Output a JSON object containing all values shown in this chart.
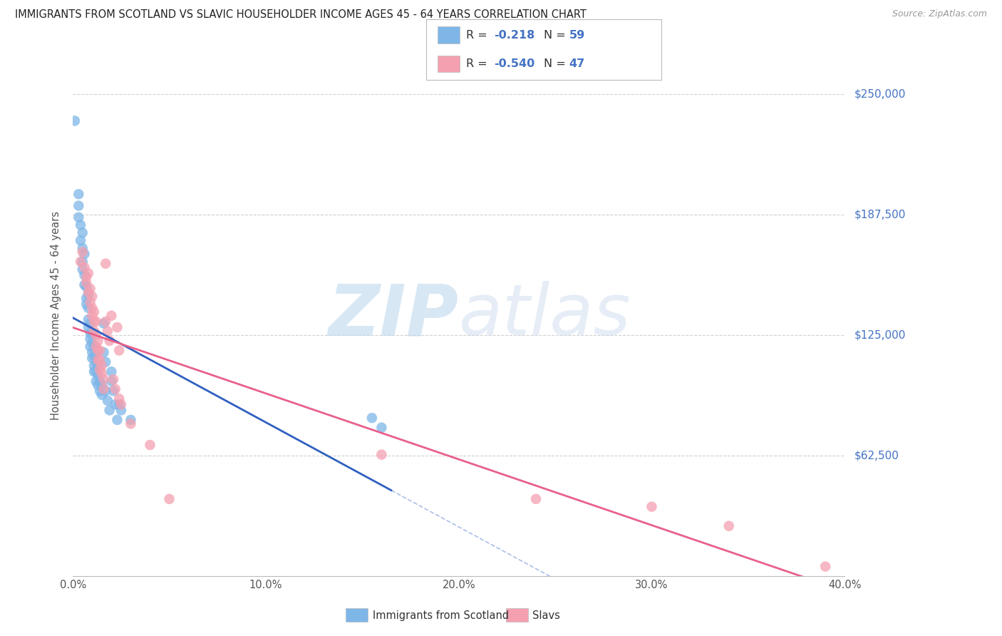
{
  "title": "IMMIGRANTS FROM SCOTLAND VS SLAVIC HOUSEHOLDER INCOME AGES 45 - 64 YEARS CORRELATION CHART",
  "source": "Source: ZipAtlas.com",
  "xlabel_ticks": [
    "0.0%",
    "10.0%",
    "20.0%",
    "30.0%",
    "40.0%"
  ],
  "xtick_vals": [
    0.0,
    0.1,
    0.2,
    0.3,
    0.4
  ],
  "ylabel_label": "Householder Income Ages 45 - 64 years",
  "ylabel_ticks": [
    "$62,500",
    "$125,000",
    "$187,500",
    "$250,000"
  ],
  "ylabel_values": [
    62500,
    125000,
    187500,
    250000
  ],
  "xlim": [
    0.0,
    0.4
  ],
  "ylim": [
    0,
    270000
  ],
  "legend_r_scotland": "-0.218",
  "legend_n_scotland": "59",
  "legend_r_slavs": "-0.540",
  "legend_n_slavs": "47",
  "scotland_color": "#7EB6E8",
  "slavs_color": "#F4A0B0",
  "scotland_line_color": "#3060C0",
  "slavs_line_color": "#E8608A",
  "watermark_zip": "ZIP",
  "watermark_atlas": "atlas",
  "background_color": "#FFFFFF",
  "scotland_points": [
    [
      0.001,
      236000
    ],
    [
      0.003,
      198000
    ],
    [
      0.003,
      192000
    ],
    [
      0.003,
      186000
    ],
    [
      0.004,
      182000
    ],
    [
      0.004,
      174000
    ],
    [
      0.005,
      178000
    ],
    [
      0.005,
      170000
    ],
    [
      0.005,
      163000
    ],
    [
      0.005,
      159000
    ],
    [
      0.006,
      167000
    ],
    [
      0.006,
      156000
    ],
    [
      0.006,
      151000
    ],
    [
      0.007,
      150000
    ],
    [
      0.007,
      144000
    ],
    [
      0.007,
      141000
    ],
    [
      0.008,
      146000
    ],
    [
      0.008,
      139000
    ],
    [
      0.008,
      133000
    ],
    [
      0.008,
      129000
    ],
    [
      0.009,
      131000
    ],
    [
      0.009,
      126000
    ],
    [
      0.009,
      123000
    ],
    [
      0.009,
      119000
    ],
    [
      0.01,
      126000
    ],
    [
      0.01,
      121000
    ],
    [
      0.01,
      116000
    ],
    [
      0.01,
      113000
    ],
    [
      0.011,
      119000
    ],
    [
      0.011,
      114000
    ],
    [
      0.011,
      109000
    ],
    [
      0.011,
      106000
    ],
    [
      0.012,
      116000
    ],
    [
      0.012,
      111000
    ],
    [
      0.012,
      106000
    ],
    [
      0.012,
      101000
    ],
    [
      0.013,
      109000
    ],
    [
      0.013,
      104000
    ],
    [
      0.013,
      99000
    ],
    [
      0.014,
      101000
    ],
    [
      0.014,
      96000
    ],
    [
      0.015,
      99000
    ],
    [
      0.015,
      94000
    ],
    [
      0.016,
      131000
    ],
    [
      0.016,
      116000
    ],
    [
      0.017,
      111000
    ],
    [
      0.017,
      96000
    ],
    [
      0.018,
      91000
    ],
    [
      0.019,
      86000
    ],
    [
      0.02,
      106000
    ],
    [
      0.02,
      101000
    ],
    [
      0.021,
      96000
    ],
    [
      0.022,
      89000
    ],
    [
      0.023,
      81000
    ],
    [
      0.024,
      89000
    ],
    [
      0.025,
      86000
    ],
    [
      0.03,
      81000
    ],
    [
      0.155,
      82000
    ],
    [
      0.16,
      77000
    ]
  ],
  "slavs_points": [
    [
      0.004,
      163000
    ],
    [
      0.005,
      168000
    ],
    [
      0.006,
      160000
    ],
    [
      0.007,
      155000
    ],
    [
      0.007,
      152000
    ],
    [
      0.008,
      157000
    ],
    [
      0.008,
      147000
    ],
    [
      0.009,
      149000
    ],
    [
      0.009,
      142000
    ],
    [
      0.01,
      145000
    ],
    [
      0.01,
      139000
    ],
    [
      0.01,
      135000
    ],
    [
      0.011,
      137000
    ],
    [
      0.011,
      132000
    ],
    [
      0.011,
      127000
    ],
    [
      0.012,
      132000
    ],
    [
      0.012,
      125000
    ],
    [
      0.012,
      119000
    ],
    [
      0.013,
      122000
    ],
    [
      0.013,
      117000
    ],
    [
      0.013,
      112000
    ],
    [
      0.014,
      117000
    ],
    [
      0.014,
      112000
    ],
    [
      0.014,
      107000
    ],
    [
      0.015,
      109000
    ],
    [
      0.015,
      105000
    ],
    [
      0.016,
      102000
    ],
    [
      0.016,
      97000
    ],
    [
      0.017,
      162000
    ],
    [
      0.017,
      132000
    ],
    [
      0.018,
      127000
    ],
    [
      0.019,
      122000
    ],
    [
      0.02,
      135000
    ],
    [
      0.021,
      102000
    ],
    [
      0.022,
      97000
    ],
    [
      0.023,
      129000
    ],
    [
      0.024,
      117000
    ],
    [
      0.024,
      92000
    ],
    [
      0.025,
      89000
    ],
    [
      0.03,
      79000
    ],
    [
      0.04,
      68000
    ],
    [
      0.05,
      40000
    ],
    [
      0.16,
      63000
    ],
    [
      0.24,
      40000
    ],
    [
      0.3,
      36000
    ],
    [
      0.34,
      26000
    ],
    [
      0.39,
      5000
    ]
  ],
  "scotland_line_x_end": 0.165,
  "slavs_line_x_end": 0.4
}
